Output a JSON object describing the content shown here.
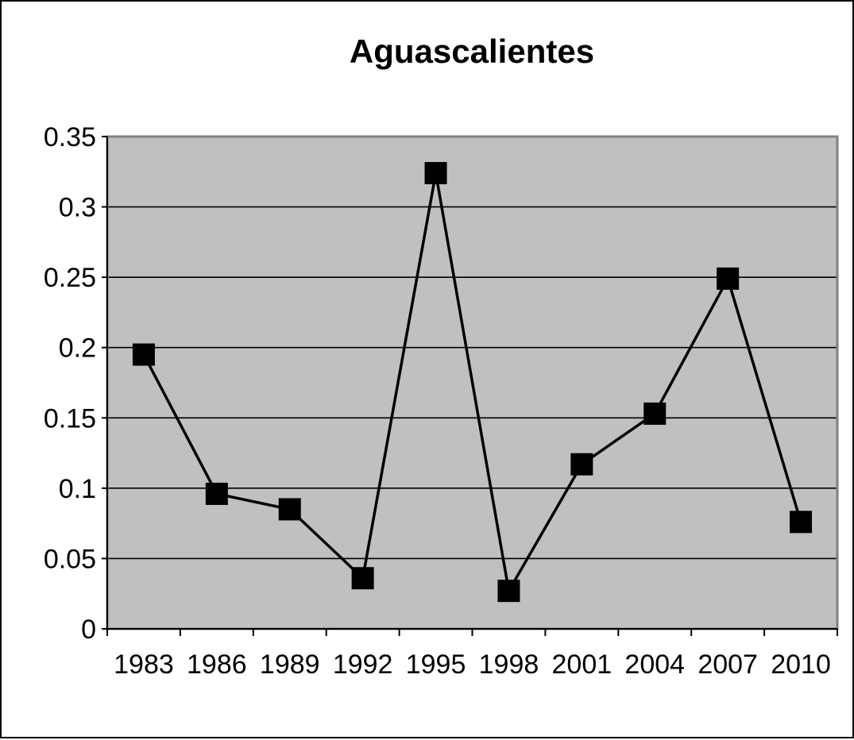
{
  "chart_data": {
    "type": "line",
    "title": "Aguascalientes",
    "xlabel": "",
    "ylabel": "",
    "categories": [
      "1983",
      "1986",
      "1989",
      "1992",
      "1995",
      "1998",
      "2001",
      "2004",
      "2007",
      "2010"
    ],
    "series": [
      {
        "values": [
          0.195,
          0.096,
          0.085,
          0.036,
          0.324,
          0.027,
          0.117,
          0.153,
          0.249,
          0.076
        ]
      }
    ],
    "ylim": [
      0,
      0.35
    ],
    "yticks": [
      "0",
      "0.05",
      "0.1",
      "0.15",
      "0.2",
      "0.25",
      "0.3",
      "0.35"
    ],
    "ytick_values": [
      0,
      0.05,
      0.1,
      0.15,
      0.2,
      0.25,
      0.3,
      0.35
    ],
    "grid": true,
    "legend": "none",
    "marker": "square",
    "colors": {
      "plot_background": "#c0c0c0",
      "plot_border": "#808080",
      "gridline": "#000000",
      "line": "#000000",
      "marker": "#000000",
      "page_background": "#ffffff"
    }
  }
}
